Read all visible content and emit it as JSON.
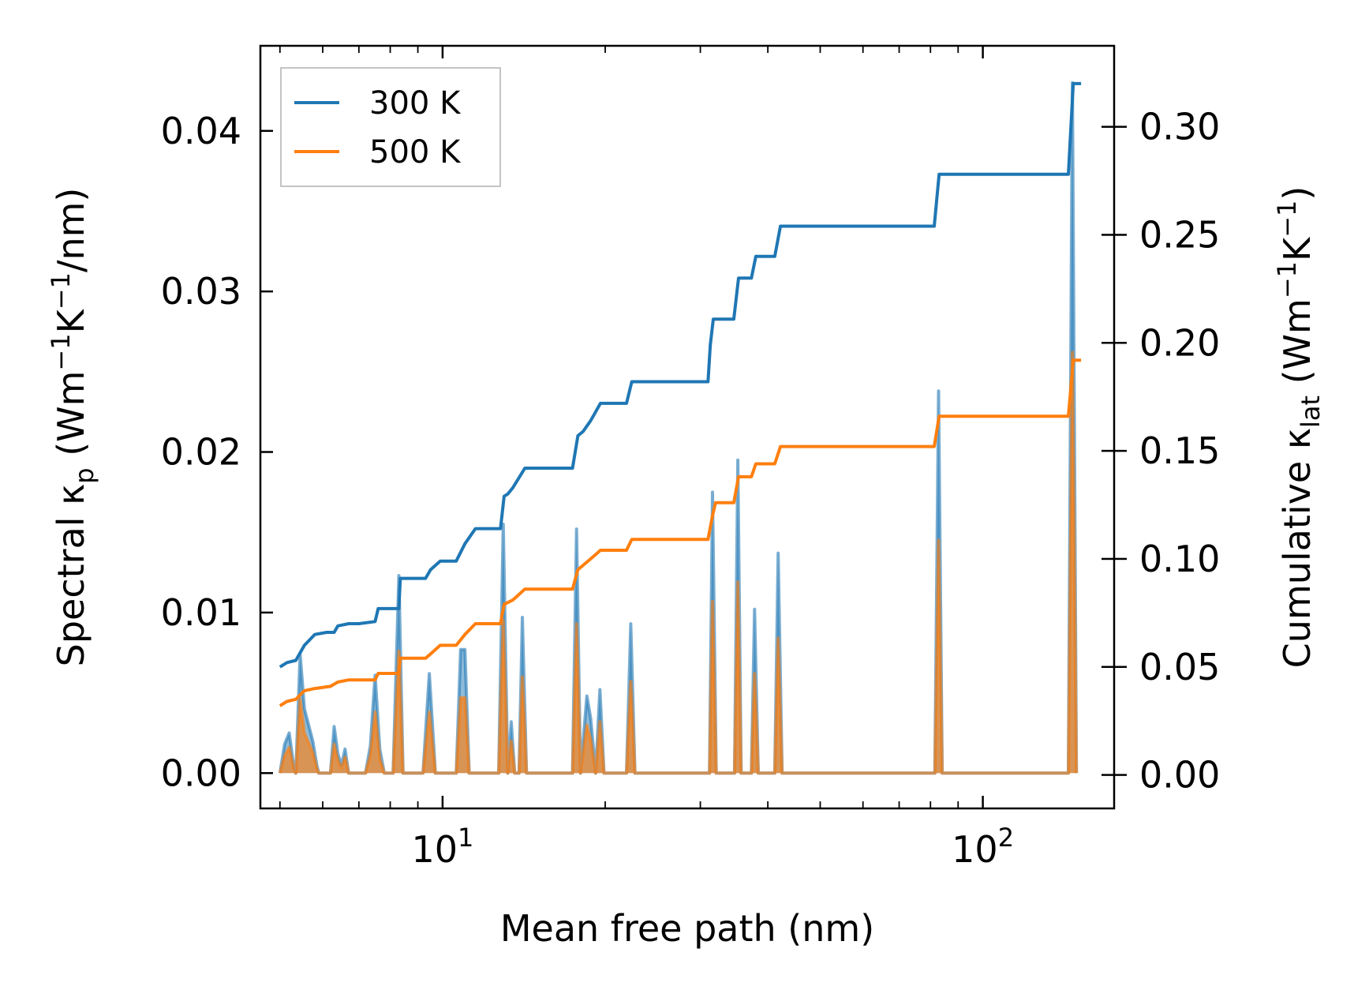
{
  "chart_data": {
    "type": "line",
    "xscale": "log",
    "xlabel": "Mean free path (nm)",
    "ylabel_left": {
      "main": "Spectral κ",
      "sub": "p",
      "unit_open": " (Wm",
      "sup1": "−1",
      "mid": "K",
      "sup2": "−1",
      "unit_close": "/nm)"
    },
    "ylabel_right": {
      "main": "Cumulative κ",
      "sub": "lat",
      "unit_open": " (Wm",
      "sup1": "−1",
      "mid": "K",
      "sup2": "−1",
      "unit_close": ")"
    },
    "xlim": [
      4.6,
      175
    ],
    "ylim_left": [
      -0.0022,
      0.0453
    ],
    "ylim_right": [
      -0.0155,
      0.3375
    ],
    "x_tick_labels": [
      {
        "value": 10,
        "base": "10",
        "exp": "1"
      },
      {
        "value": 100,
        "base": "10",
        "exp": "2"
      }
    ],
    "y_left_ticks": [
      0.0,
      0.01,
      0.02,
      0.03,
      0.04
    ],
    "y_left_tick_labels": [
      "0.00",
      "0.01",
      "0.02",
      "0.03",
      "0.04"
    ],
    "y_right_ticks": [
      0.0,
      0.05,
      0.1,
      0.15,
      0.2,
      0.25,
      0.3
    ],
    "y_right_tick_labels": [
      "0.00",
      "0.05",
      "0.10",
      "0.15",
      "0.20",
      "0.25",
      "0.30"
    ],
    "legend": {
      "position": "top-left",
      "entries": [
        {
          "label": "300 K",
          "color": "#1f77b4"
        },
        {
          "label": "500 K",
          "color": "#ff7f0e"
        }
      ]
    },
    "series": [
      {
        "name": "300 K",
        "color": "#1f77b4",
        "spectral": [
          [
            5.0,
            0.0
          ],
          [
            5.1,
            0.0018
          ],
          [
            5.2,
            0.0025
          ],
          [
            5.3,
            0.0005
          ],
          [
            5.35,
            0.0
          ],
          [
            5.45,
            0.0074
          ],
          [
            5.55,
            0.004
          ],
          [
            5.65,
            0.003
          ],
          [
            5.75,
            0.002
          ],
          [
            5.85,
            0.0005
          ],
          [
            5.9,
            0.0
          ],
          [
            6.2,
            0.0
          ],
          [
            6.3,
            0.0029
          ],
          [
            6.4,
            0.0012
          ],
          [
            6.5,
            0.0005
          ],
          [
            6.6,
            0.0015
          ],
          [
            6.7,
            0.0
          ],
          [
            7.2,
            0.0
          ],
          [
            7.35,
            0.0017
          ],
          [
            7.5,
            0.0061
          ],
          [
            7.65,
            0.0015
          ],
          [
            7.8,
            0.0
          ],
          [
            8.1,
            0.0
          ],
          [
            8.3,
            0.0123
          ],
          [
            8.45,
            0.0
          ],
          [
            9.2,
            0.0
          ],
          [
            9.45,
            0.0062
          ],
          [
            9.7,
            0.0
          ],
          [
            10.6,
            0.0
          ],
          [
            10.8,
            0.0077
          ],
          [
            11.0,
            0.0077
          ],
          [
            11.2,
            0.0
          ],
          [
            12.7,
            0.0
          ],
          [
            12.95,
            0.0155
          ],
          [
            13.2,
            0.0
          ],
          [
            13.4,
            0.0032
          ],
          [
            13.6,
            0.0
          ],
          [
            13.85,
            0.0
          ],
          [
            14.05,
            0.0097
          ],
          [
            14.3,
            0.0
          ],
          [
            17.4,
            0.0
          ],
          [
            17.7,
            0.0152
          ],
          [
            18.0,
            0.0
          ],
          [
            18.5,
            0.0048
          ],
          [
            18.8,
            0.0034
          ],
          [
            19.2,
            0.0
          ],
          [
            19.55,
            0.0052
          ],
          [
            19.9,
            0.0
          ],
          [
            21.9,
            0.0
          ],
          [
            22.3,
            0.0093
          ],
          [
            22.7,
            0.0
          ],
          [
            31.2,
            0.0
          ],
          [
            31.6,
            0.0175
          ],
          [
            32.1,
            0.0
          ],
          [
            34.7,
            0.0
          ],
          [
            35.2,
            0.0195
          ],
          [
            35.7,
            0.0
          ],
          [
            37.3,
            0.0
          ],
          [
            37.8,
            0.0102
          ],
          [
            38.4,
            0.0
          ],
          [
            41.2,
            0.0
          ],
          [
            41.8,
            0.0137
          ],
          [
            42.5,
            0.0
          ],
          [
            81.5,
            0.0
          ],
          [
            82.8,
            0.0238
          ],
          [
            84.1,
            0.0
          ],
          [
            144,
            0.0
          ],
          [
            146.5,
            0.043
          ],
          [
            149,
            0.0
          ]
        ],
        "cumulative": [
          [
            5.0,
            0.05
          ],
          [
            5.15,
            0.052
          ],
          [
            5.35,
            0.053
          ],
          [
            5.55,
            0.06
          ],
          [
            5.8,
            0.065
          ],
          [
            6.1,
            0.066
          ],
          [
            6.3,
            0.066
          ],
          [
            6.4,
            0.069
          ],
          [
            6.7,
            0.07
          ],
          [
            7.0,
            0.07
          ],
          [
            7.5,
            0.071
          ],
          [
            7.6,
            0.077
          ],
          [
            8.0,
            0.077
          ],
          [
            8.3,
            0.077
          ],
          [
            8.35,
            0.091
          ],
          [
            9.0,
            0.091
          ],
          [
            9.3,
            0.091
          ],
          [
            9.5,
            0.095
          ],
          [
            9.9,
            0.099
          ],
          [
            10.6,
            0.099
          ],
          [
            11.0,
            0.107
          ],
          [
            11.5,
            0.114
          ],
          [
            12.8,
            0.114
          ],
          [
            13.0,
            0.129
          ],
          [
            13.2,
            0.13
          ],
          [
            13.5,
            0.133
          ],
          [
            14.2,
            0.142
          ],
          [
            17.4,
            0.142
          ],
          [
            17.8,
            0.157
          ],
          [
            18.2,
            0.159
          ],
          [
            18.8,
            0.164
          ],
          [
            19.6,
            0.172
          ],
          [
            21.9,
            0.172
          ],
          [
            22.4,
            0.182
          ],
          [
            31.0,
            0.182
          ],
          [
            31.3,
            0.199
          ],
          [
            31.7,
            0.211
          ],
          [
            34.6,
            0.211
          ],
          [
            35.3,
            0.23
          ],
          [
            37.3,
            0.23
          ],
          [
            38.0,
            0.24
          ],
          [
            41.2,
            0.24
          ],
          [
            42.2,
            0.254
          ],
          [
            81.3,
            0.254
          ],
          [
            83.0,
            0.278
          ],
          [
            144,
            0.278
          ],
          [
            147,
            0.32
          ],
          [
            152,
            0.32
          ]
        ]
      },
      {
        "name": "500 K",
        "color": "#ff7f0e",
        "spectral": [
          [
            5.0,
            0.0
          ],
          [
            5.1,
            0.0011
          ],
          [
            5.2,
            0.0016
          ],
          [
            5.3,
            0.0003
          ],
          [
            5.35,
            0.0
          ],
          [
            5.45,
            0.0046
          ],
          [
            5.55,
            0.0025
          ],
          [
            5.65,
            0.0019
          ],
          [
            5.75,
            0.0013
          ],
          [
            5.85,
            0.0003
          ],
          [
            5.9,
            0.0
          ],
          [
            6.2,
            0.0
          ],
          [
            6.3,
            0.0018
          ],
          [
            6.4,
            0.0008
          ],
          [
            6.5,
            0.0003
          ],
          [
            6.6,
            0.001
          ],
          [
            6.7,
            0.0
          ],
          [
            7.2,
            0.0
          ],
          [
            7.35,
            0.0011
          ],
          [
            7.5,
            0.0038
          ],
          [
            7.65,
            0.0009
          ],
          [
            7.8,
            0.0
          ],
          [
            8.1,
            0.0
          ],
          [
            8.3,
            0.0076
          ],
          [
            8.45,
            0.0
          ],
          [
            9.2,
            0.0
          ],
          [
            9.45,
            0.0038
          ],
          [
            9.7,
            0.0
          ],
          [
            10.6,
            0.0
          ],
          [
            10.8,
            0.0047
          ],
          [
            11.0,
            0.0047
          ],
          [
            11.2,
            0.0
          ],
          [
            12.7,
            0.0
          ],
          [
            12.95,
            0.0095
          ],
          [
            13.2,
            0.0
          ],
          [
            13.4,
            0.002
          ],
          [
            13.6,
            0.0
          ],
          [
            13.85,
            0.0
          ],
          [
            14.05,
            0.006
          ],
          [
            14.3,
            0.0
          ],
          [
            17.4,
            0.0
          ],
          [
            17.7,
            0.0093
          ],
          [
            18.0,
            0.0
          ],
          [
            18.5,
            0.003
          ],
          [
            18.8,
            0.0021
          ],
          [
            19.2,
            0.0
          ],
          [
            19.55,
            0.0032
          ],
          [
            19.9,
            0.0
          ],
          [
            21.9,
            0.0
          ],
          [
            22.3,
            0.0057
          ],
          [
            22.7,
            0.0
          ],
          [
            31.2,
            0.0
          ],
          [
            31.6,
            0.0107
          ],
          [
            32.1,
            0.0
          ],
          [
            34.7,
            0.0
          ],
          [
            35.2,
            0.0119
          ],
          [
            35.7,
            0.0
          ],
          [
            37.3,
            0.0
          ],
          [
            37.8,
            0.0062
          ],
          [
            38.4,
            0.0
          ],
          [
            41.2,
            0.0
          ],
          [
            41.8,
            0.0084
          ],
          [
            42.5,
            0.0
          ],
          [
            81.5,
            0.0
          ],
          [
            82.8,
            0.0145
          ],
          [
            84.1,
            0.0
          ],
          [
            144,
            0.0
          ],
          [
            146.5,
            0.0262
          ],
          [
            149,
            0.0
          ]
        ],
        "cumulative": [
          [
            5.0,
            0.032
          ],
          [
            5.15,
            0.034
          ],
          [
            5.35,
            0.035
          ],
          [
            5.55,
            0.039
          ],
          [
            5.8,
            0.04
          ],
          [
            6.2,
            0.041
          ],
          [
            6.4,
            0.043
          ],
          [
            6.7,
            0.044
          ],
          [
            7.5,
            0.044
          ],
          [
            7.6,
            0.047
          ],
          [
            8.3,
            0.047
          ],
          [
            8.35,
            0.054
          ],
          [
            9.3,
            0.054
          ],
          [
            9.5,
            0.056
          ],
          [
            9.9,
            0.06
          ],
          [
            10.6,
            0.06
          ],
          [
            11.0,
            0.065
          ],
          [
            11.5,
            0.07
          ],
          [
            12.8,
            0.07
          ],
          [
            13.0,
            0.079
          ],
          [
            13.5,
            0.081
          ],
          [
            14.2,
            0.086
          ],
          [
            17.4,
            0.086
          ],
          [
            17.8,
            0.095
          ],
          [
            18.8,
            0.1
          ],
          [
            19.6,
            0.104
          ],
          [
            21.9,
            0.104
          ],
          [
            22.4,
            0.109
          ],
          [
            31.0,
            0.109
          ],
          [
            31.6,
            0.12
          ],
          [
            32.0,
            0.126
          ],
          [
            34.6,
            0.126
          ],
          [
            35.3,
            0.138
          ],
          [
            37.3,
            0.138
          ],
          [
            38.0,
            0.144
          ],
          [
            41.2,
            0.144
          ],
          [
            42.2,
            0.152
          ],
          [
            81.3,
            0.152
          ],
          [
            83.0,
            0.166
          ],
          [
            144,
            0.166
          ],
          [
            147,
            0.192
          ],
          [
            152,
            0.192
          ]
        ]
      }
    ]
  }
}
